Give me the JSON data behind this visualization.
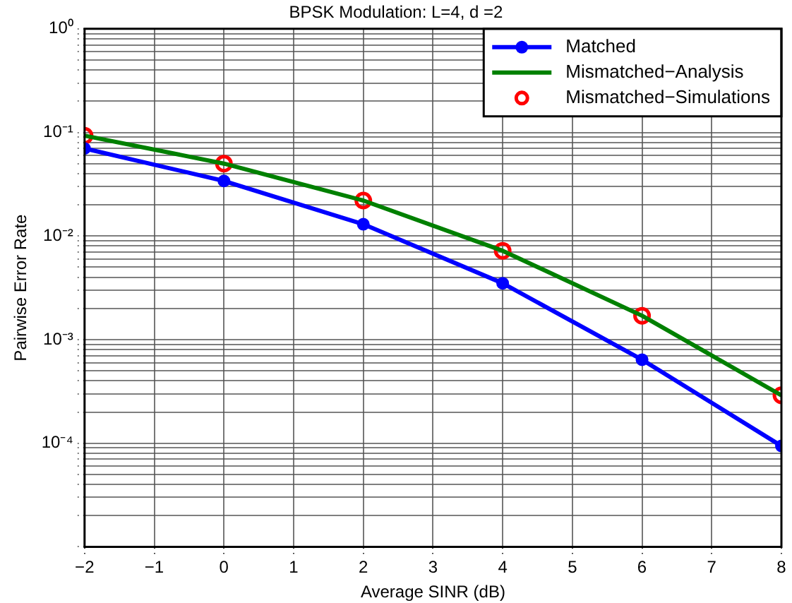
{
  "chart_data": {
    "type": "line",
    "title": "BPSK Modulation: L=4, d =2",
    "xlabel": "Average SINR (dB)",
    "ylabel": "Pairwise Error Rate",
    "x": [
      -2,
      0,
      2,
      4,
      6,
      8
    ],
    "series": [
      {
        "name": "Matched",
        "color": "#0000ff",
        "values": [
          0.07,
          0.034,
          0.013,
          0.0035,
          0.00064,
          9.4e-05
        ],
        "marker": "circle"
      },
      {
        "name": "Mismatched−Analysis",
        "color": "#008000",
        "values": [
          0.093,
          0.05,
          0.022,
          0.0072,
          0.0017,
          0.00029
        ],
        "marker": "none"
      },
      {
        "name": "Mismatched−Simulations",
        "color": "#ff0000",
        "type": "scatter",
        "values": [
          0.093,
          0.05,
          0.022,
          0.0072,
          0.0017,
          0.00029
        ],
        "marker": "circle"
      }
    ],
    "xlim": [
      -2,
      8
    ],
    "xticks": [
      {
        "value": -2,
        "label": "−2"
      },
      {
        "value": -1,
        "label": "−1"
      },
      0,
      1,
      2,
      3,
      4,
      5,
      6,
      7,
      8
    ],
    "ylim": [
      1e-05,
      1
    ],
    "yticks": [
      {
        "value": 1e-05,
        "label": null
      },
      {
        "value": 2e-05,
        "label": null
      },
      {
        "value": 3e-05,
        "label": null
      },
      {
        "value": 4e-05,
        "label": null
      },
      {
        "value": 5e-05,
        "label": null
      },
      {
        "value": 6e-05,
        "label": null
      },
      {
        "value": 7e-05,
        "label": null
      },
      {
        "value": 8e-05,
        "label": null
      },
      {
        "value": 9e-05,
        "label": null
      },
      {
        "value": 0.0001,
        "label": "10⁻⁴"
      },
      {
        "value": 0.0002,
        "label": null
      },
      {
        "value": 0.0003,
        "label": null
      },
      {
        "value": 0.0004,
        "label": null
      },
      {
        "value": 0.0005,
        "label": null
      },
      {
        "value": 0.0006,
        "label": null
      },
      {
        "value": 0.0007,
        "label": null
      },
      {
        "value": 0.0008,
        "label": null
      },
      {
        "value": 0.0009,
        "label": null
      },
      {
        "value": 0.001,
        "label": "10⁻³"
      },
      {
        "value": 0.002,
        "label": null
      },
      {
        "value": 0.003,
        "label": null
      },
      {
        "value": 0.004,
        "label": null
      },
      {
        "value": 0.005,
        "label": null
      },
      {
        "value": 0.006,
        "label": null
      },
      {
        "value": 0.007,
        "label": null
      },
      {
        "value": 0.008,
        "label": null
      },
      {
        "value": 0.009,
        "label": null
      },
      {
        "value": 0.01,
        "label": "10⁻²"
      },
      {
        "value": 0.02,
        "label": null
      },
      {
        "value": 0.03,
        "label": null
      },
      {
        "value": 0.04,
        "label": null
      },
      {
        "value": 0.05,
        "label": null
      },
      {
        "value": 0.06,
        "label": null
      },
      {
        "value": 0.07,
        "label": null
      },
      {
        "value": 0.08,
        "label": null
      },
      {
        "value": 0.09,
        "label": null
      },
      {
        "value": 0.1,
        "label": "10⁻¹"
      },
      {
        "value": 0.2,
        "label": null
      },
      {
        "value": 0.3,
        "label": null
      },
      {
        "value": 0.4,
        "label": null
      },
      {
        "value": 0.5,
        "label": null
      },
      {
        "value": 0.6,
        "label": null
      },
      {
        "value": 0.7,
        "label": null
      },
      {
        "value": 0.8,
        "label": null
      },
      {
        "value": 0.9,
        "label": null
      },
      {
        "value": 1,
        "label": "10⁰"
      }
    ],
    "log": "y",
    "grid": true,
    "legend": "top right"
  }
}
